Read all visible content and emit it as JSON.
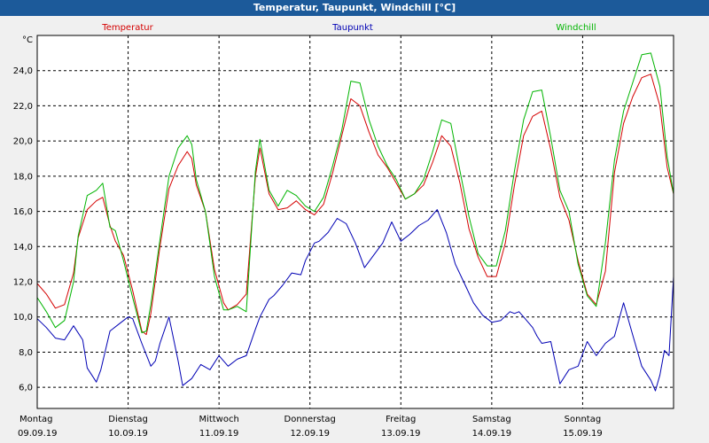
{
  "window": {
    "title": "Temperatur, Taupunkt, Windchill [°C]"
  },
  "colors": {
    "temperature": "#d40000",
    "dewpoint": "#0000b4",
    "windchill": "#00b400"
  },
  "chart_data": {
    "type": "line",
    "title": "Temperatur, Taupunkt, Windchill [°C]",
    "ylabel": "°C",
    "xlabel": "",
    "ylim": [
      4.8,
      26.0
    ],
    "xlim": [
      0,
      7.0
    ],
    "yticks": [
      6.0,
      8.0,
      10.0,
      12.0,
      14.0,
      16.0,
      18.0,
      20.0,
      22.0,
      24.0
    ],
    "ytick_labels": [
      "6,0",
      "8,0",
      "10,0",
      "12,0",
      "14,0",
      "16,0",
      "18,0",
      "20,0",
      "22,0",
      "24,0"
    ],
    "grid": true,
    "days": [
      {
        "weekday": "Montag",
        "date": "09.09.19"
      },
      {
        "weekday": "Dienstag",
        "date": "10.09.19"
      },
      {
        "weekday": "Mittwoch",
        "date": "11.09.19"
      },
      {
        "weekday": "Donnerstag",
        "date": "12.09.19"
      },
      {
        "weekday": "Freitag",
        "date": "13.09.19"
      },
      {
        "weekday": "Samstag",
        "date": "14.09.19"
      },
      {
        "weekday": "Sonntag",
        "date": "15.09.19"
      }
    ],
    "series": [
      {
        "name": "Temperatur",
        "color": "#d40000",
        "x": [
          0.0,
          0.1,
          0.2,
          0.3,
          0.4,
          0.45,
          0.55,
          0.65,
          0.72,
          0.8,
          0.86,
          0.95,
          1.05,
          1.15,
          1.2,
          1.25,
          1.35,
          1.45,
          1.55,
          1.65,
          1.7,
          1.75,
          1.85,
          1.95,
          2.05,
          2.1,
          2.2,
          2.3,
          2.4,
          2.45,
          2.55,
          2.65,
          2.75,
          2.85,
          2.95,
          3.05,
          3.15,
          3.25,
          3.35,
          3.45,
          3.55,
          3.65,
          3.75,
          3.85,
          3.95,
          4.05,
          4.15,
          4.25,
          4.35,
          4.45,
          4.55,
          4.65,
          4.75,
          4.85,
          4.95,
          5.05,
          5.15,
          5.25,
          5.35,
          5.45,
          5.55,
          5.65,
          5.75,
          5.85,
          5.95,
          6.05,
          6.15,
          6.25,
          6.35,
          6.45,
          6.55,
          6.65,
          6.75,
          6.85,
          6.93,
          7.0
        ],
        "y": [
          11.9,
          11.3,
          10.5,
          10.7,
          12.5,
          14.5,
          16.1,
          16.6,
          16.8,
          15.2,
          14.3,
          13.5,
          11.5,
          9.2,
          9.0,
          10.2,
          14.0,
          17.3,
          18.6,
          19.4,
          19.0,
          17.5,
          16.0,
          12.7,
          10.8,
          10.4,
          10.7,
          11.3,
          18.0,
          19.6,
          17.0,
          16.1,
          16.2,
          16.6,
          16.1,
          15.8,
          16.4,
          18.2,
          20.3,
          22.4,
          22.0,
          20.5,
          19.2,
          18.5,
          17.6,
          16.7,
          17.0,
          17.5,
          18.8,
          20.3,
          19.7,
          17.6,
          15.0,
          13.4,
          12.3,
          12.3,
          14.2,
          17.5,
          20.3,
          21.4,
          21.7,
          19.5,
          16.8,
          15.5,
          13.2,
          11.3,
          10.7,
          12.6,
          18.2,
          21.0,
          22.5,
          23.6,
          23.8,
          22.0,
          18.5,
          17.0
        ]
      },
      {
        "name": "Taupunkt",
        "color": "#0000b4",
        "x": [
          0.0,
          0.1,
          0.2,
          0.3,
          0.4,
          0.5,
          0.55,
          0.65,
          0.7,
          0.8,
          0.9,
          1.0,
          1.05,
          1.15,
          1.25,
          1.3,
          1.35,
          1.45,
          1.55,
          1.6,
          1.7,
          1.8,
          1.9,
          2.0,
          2.05,
          2.1,
          2.2,
          2.3,
          2.4,
          2.45,
          2.55,
          2.6,
          2.7,
          2.8,
          2.9,
          2.95,
          3.05,
          3.1,
          3.2,
          3.3,
          3.4,
          3.5,
          3.6,
          3.7,
          3.8,
          3.9,
          4.0,
          4.1,
          4.2,
          4.3,
          4.4,
          4.5,
          4.6,
          4.7,
          4.8,
          4.9,
          5.0,
          5.1,
          5.2,
          5.25,
          5.3,
          5.35,
          5.45,
          5.5,
          5.55,
          5.65,
          5.75,
          5.85,
          5.95,
          6.05,
          6.15,
          6.25,
          6.35,
          6.45,
          6.55,
          6.65,
          6.75,
          6.8,
          6.85,
          6.9,
          6.95,
          7.0
        ],
        "y": [
          9.9,
          9.4,
          8.8,
          8.7,
          9.5,
          8.7,
          7.1,
          6.3,
          7.0,
          9.2,
          9.6,
          10.0,
          9.9,
          8.5,
          7.2,
          7.5,
          8.5,
          10.0,
          7.5,
          6.1,
          6.5,
          7.3,
          7.0,
          7.8,
          7.5,
          7.2,
          7.6,
          7.8,
          9.3,
          10.0,
          11.0,
          11.2,
          11.8,
          12.5,
          12.4,
          13.2,
          14.2,
          14.3,
          14.8,
          15.6,
          15.3,
          14.2,
          12.8,
          13.5,
          14.2,
          15.4,
          14.3,
          14.7,
          15.2,
          15.5,
          16.1,
          14.8,
          13.0,
          11.9,
          10.8,
          10.1,
          9.7,
          9.8,
          10.3,
          10.2,
          10.3,
          10.0,
          9.4,
          8.9,
          8.5,
          8.6,
          6.2,
          7.0,
          7.2,
          8.6,
          7.8,
          8.5,
          8.9,
          10.8,
          9.0,
          7.2,
          6.4,
          5.8,
          6.7,
          8.1,
          7.8,
          12.3
        ]
      },
      {
        "name": "Windchill",
        "color": "#00b400",
        "x": [
          0.0,
          0.1,
          0.2,
          0.3,
          0.4,
          0.45,
          0.55,
          0.65,
          0.72,
          0.8,
          0.86,
          0.95,
          1.05,
          1.15,
          1.2,
          1.25,
          1.35,
          1.45,
          1.55,
          1.65,
          1.7,
          1.75,
          1.85,
          1.95,
          2.05,
          2.1,
          2.2,
          2.3,
          2.4,
          2.45,
          2.55,
          2.65,
          2.75,
          2.85,
          2.95,
          3.05,
          3.15,
          3.25,
          3.35,
          3.45,
          3.55,
          3.65,
          3.75,
          3.85,
          3.95,
          4.05,
          4.15,
          4.25,
          4.35,
          4.45,
          4.55,
          4.65,
          4.75,
          4.85,
          4.95,
          5.05,
          5.15,
          5.25,
          5.35,
          5.45,
          5.55,
          5.65,
          5.75,
          5.85,
          5.95,
          6.05,
          6.15,
          6.25,
          6.35,
          6.45,
          6.55,
          6.65,
          6.75,
          6.85,
          6.93,
          7.0
        ],
        "y": [
          11.1,
          10.3,
          9.4,
          9.8,
          12.0,
          14.6,
          16.9,
          17.2,
          17.6,
          15.1,
          14.9,
          13.2,
          11.1,
          9.1,
          9.2,
          10.7,
          14.4,
          18.0,
          19.6,
          20.3,
          19.8,
          17.8,
          16.0,
          12.3,
          10.4,
          10.4,
          10.6,
          10.3,
          18.3,
          20.1,
          17.2,
          16.3,
          17.2,
          16.9,
          16.3,
          16.0,
          16.8,
          18.6,
          20.6,
          23.4,
          23.3,
          21.2,
          19.7,
          18.6,
          17.8,
          16.7,
          17.0,
          17.8,
          19.4,
          21.2,
          21.0,
          18.3,
          15.7,
          13.6,
          12.9,
          12.9,
          14.9,
          18.3,
          21.2,
          22.8,
          22.9,
          20.2,
          17.2,
          16.0,
          13.0,
          11.2,
          10.6,
          14.2,
          18.9,
          21.7,
          23.3,
          24.9,
          25.0,
          23.1,
          19.1,
          17.0
        ]
      }
    ]
  }
}
